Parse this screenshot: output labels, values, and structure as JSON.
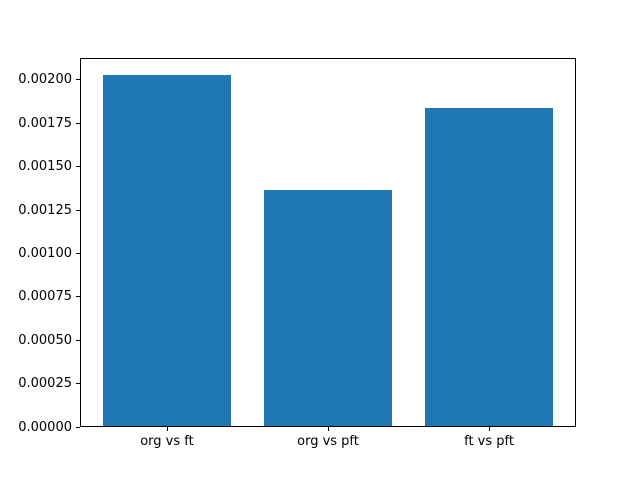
{
  "figure": {
    "background": "#ffffff",
    "frame_color": "#000000"
  },
  "chart_data": {
    "type": "bar",
    "title": "",
    "xlabel": "",
    "ylabel": "",
    "categories": [
      "org vs ft",
      "org vs pft",
      "ft vs pft"
    ],
    "values": [
      0.00202,
      0.00136,
      0.00183
    ],
    "bar_color": "#1f77b4",
    "bar_width_fraction": 0.8,
    "ylim": [
      0,
      0.002126
    ],
    "yticks": [
      0,
      0.00025,
      0.0005,
      0.00075,
      0.001,
      0.00125,
      0.0015,
      0.00175,
      0.002
    ],
    "ytick_labels": [
      "0.00000",
      "0.00025",
      "0.00050",
      "0.00075",
      "0.00100",
      "0.00125",
      "0.00150",
      "0.00175",
      "0.00200"
    ],
    "grid": false,
    "legend": null,
    "frame": "full-box"
  }
}
